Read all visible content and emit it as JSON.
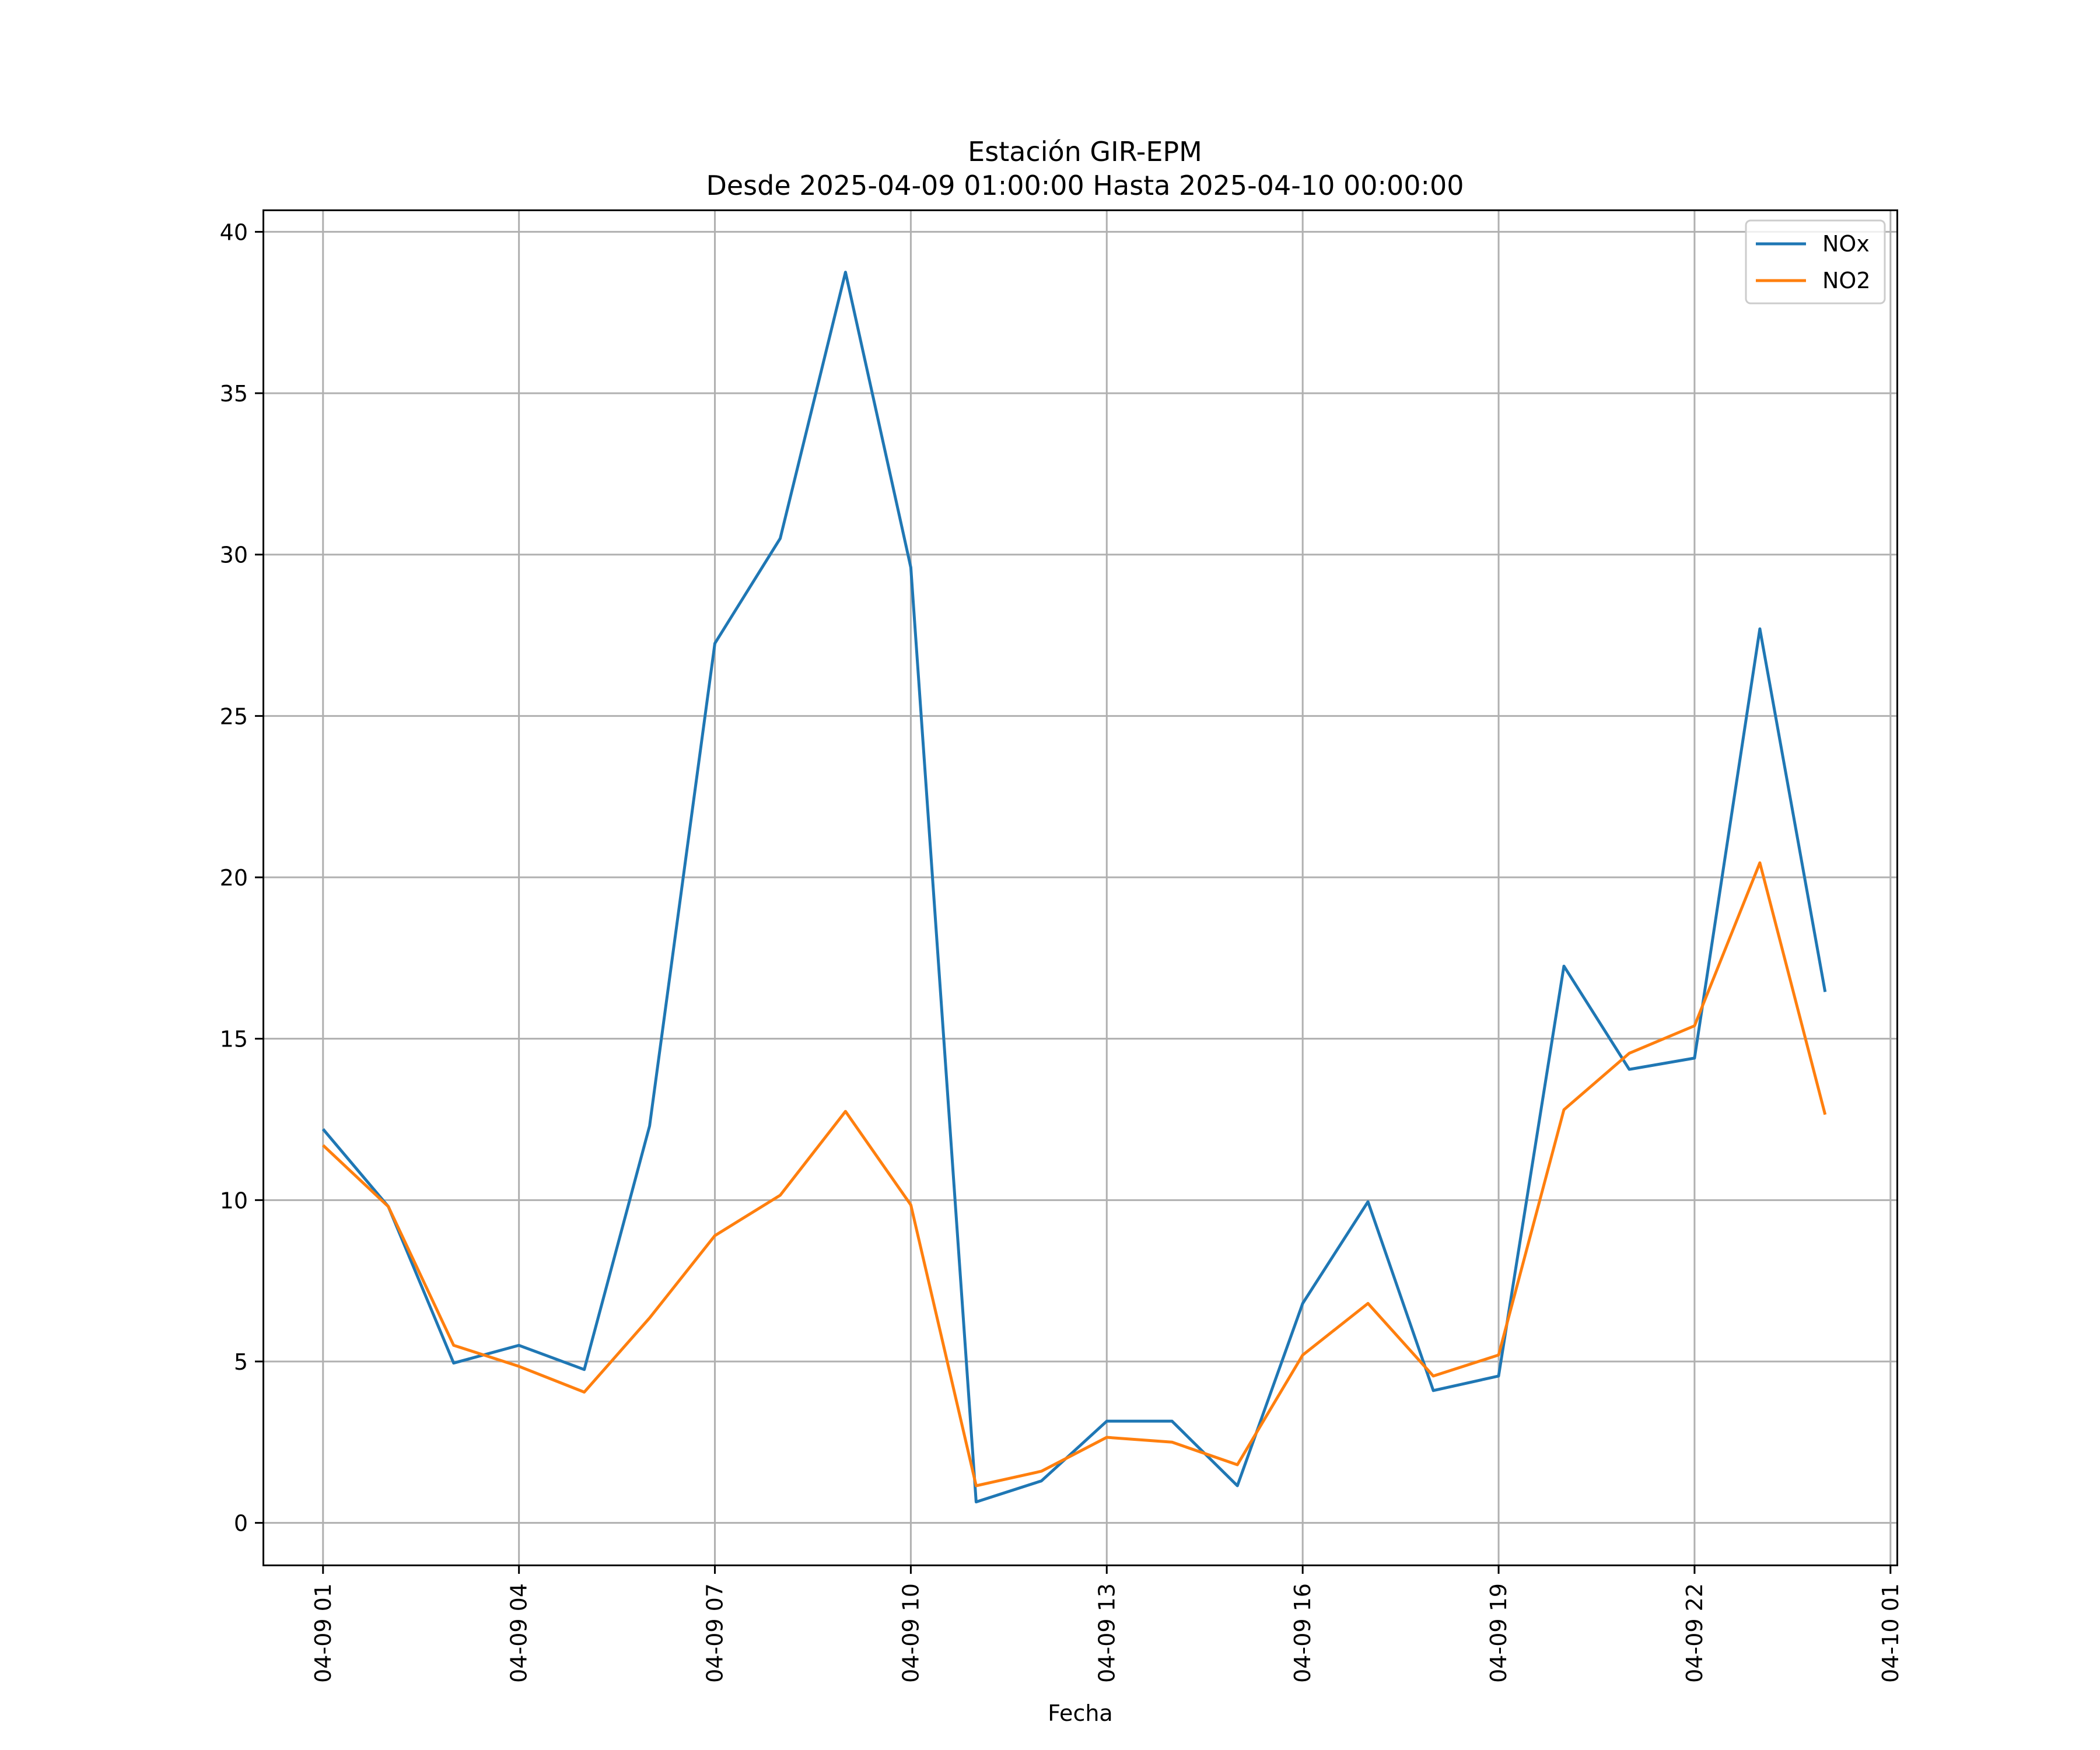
{
  "chart_data": {
    "type": "line",
    "title": "Estación GIR-EPM",
    "subtitle": "Desde 2025-04-09 01:00:00 Hasta 2025-04-10 00:00:00",
    "xlabel": "Fecha",
    "ylabel": "",
    "x": [
      "2025-04-09 01:00",
      "2025-04-09 02:00",
      "2025-04-09 03:00",
      "2025-04-09 04:00",
      "2025-04-09 05:00",
      "2025-04-09 06:00",
      "2025-04-09 07:00",
      "2025-04-09 08:00",
      "2025-04-09 09:00",
      "2025-04-09 10:00",
      "2025-04-09 11:00",
      "2025-04-09 12:00",
      "2025-04-09 13:00",
      "2025-04-09 14:00",
      "2025-04-09 15:00",
      "2025-04-09 16:00",
      "2025-04-09 17:00",
      "2025-04-09 18:00",
      "2025-04-09 19:00",
      "2025-04-09 20:00",
      "2025-04-09 21:00",
      "2025-04-09 22:00",
      "2025-04-09 23:00",
      "2025-04-10 00:00"
    ],
    "series": [
      {
        "name": "NOx",
        "color": "#1f77b4",
        "values": [
          12.2,
          9.8,
          4.95,
          5.5,
          4.75,
          12.3,
          27.25,
          30.5,
          38.75,
          29.6,
          0.65,
          1.3,
          3.15,
          3.15,
          1.15,
          6.8,
          9.95,
          4.1,
          4.55,
          17.25,
          14.05,
          14.4,
          27.7,
          16.45
        ]
      },
      {
        "name": "NO2",
        "color": "#ff7f0e",
        "values": [
          11.7,
          9.8,
          5.5,
          4.85,
          4.05,
          6.35,
          8.9,
          10.15,
          12.75,
          9.85,
          1.15,
          1.6,
          2.65,
          2.5,
          1.8,
          5.2,
          6.8,
          4.55,
          5.2,
          12.8,
          14.55,
          15.4,
          20.45,
          12.65
        ]
      }
    ],
    "xticks": [
      "04-09 01",
      "04-09 04",
      "04-09 07",
      "04-09 10",
      "04-09 13",
      "04-09 16",
      "04-09 19",
      "04-09 22",
      "04-10 01"
    ],
    "yticks": [
      "0",
      "5",
      "10",
      "15",
      "20",
      "25",
      "30",
      "35",
      "40"
    ],
    "xlim": [
      "2025-04-09 00:06",
      "2025-04-10 01:06"
    ],
    "ylim": [
      -1.29,
      40.64
    ],
    "grid": true,
    "legend_placement": "top-right"
  }
}
